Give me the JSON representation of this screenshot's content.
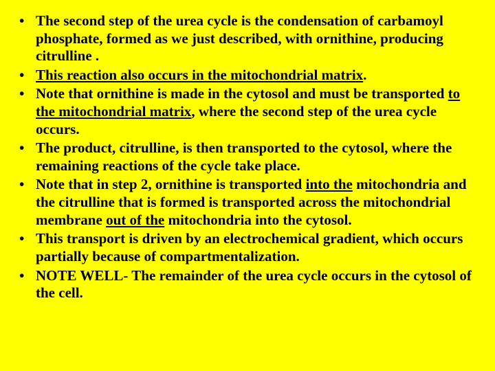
{
  "bullets": [
    {
      "segments": [
        {
          "text": "The second step of the urea cycle is the condensation of carbamoyl phosphate, formed as we just described, with ornithine, producing citrulline ."
        }
      ]
    },
    {
      "segments": [
        {
          "text": "This reaction also occurs in the mitochondrial matrix",
          "underline": true
        },
        {
          "text": "."
        }
      ]
    },
    {
      "segments": [
        {
          "text": "Note that ornithine is made in the cytosol and must be transported "
        },
        {
          "text": "to the mitochondrial matrix",
          "underline": true
        },
        {
          "text": ", where the second step of the urea cycle occurs."
        }
      ]
    },
    {
      "segments": [
        {
          "text": "The product, citrulline, is then transported to the cytosol, where the remaining reactions of the cycle take place."
        }
      ]
    },
    {
      "segments": [
        {
          "text": "Note that in step 2, ornithine is transported "
        },
        {
          "text": "into the",
          "underline": true
        },
        {
          "text": " mitochondria and the citrulline that is formed is transported across the mitochondrial membrane "
        },
        {
          "text": "out of the",
          "underline": true
        },
        {
          "text": " mitochondria into the cytosol."
        }
      ]
    },
    {
      "segments": [
        {
          "text": "This transport is driven by an electrochemical gradient, which occurs partially because of compartmentalization."
        }
      ]
    },
    {
      "segments": [
        {
          "text": "NOTE WELL- The remainder of the urea cycle occurs in the cytosol of the cell."
        }
      ]
    }
  ],
  "style": {
    "background_color": "#ffff00",
    "text_color": "#000000",
    "font_family": "Times New Roman",
    "font_size_pt": 16,
    "font_weight": "bold",
    "line_height": 1.22,
    "bullet_glyph": "•"
  }
}
